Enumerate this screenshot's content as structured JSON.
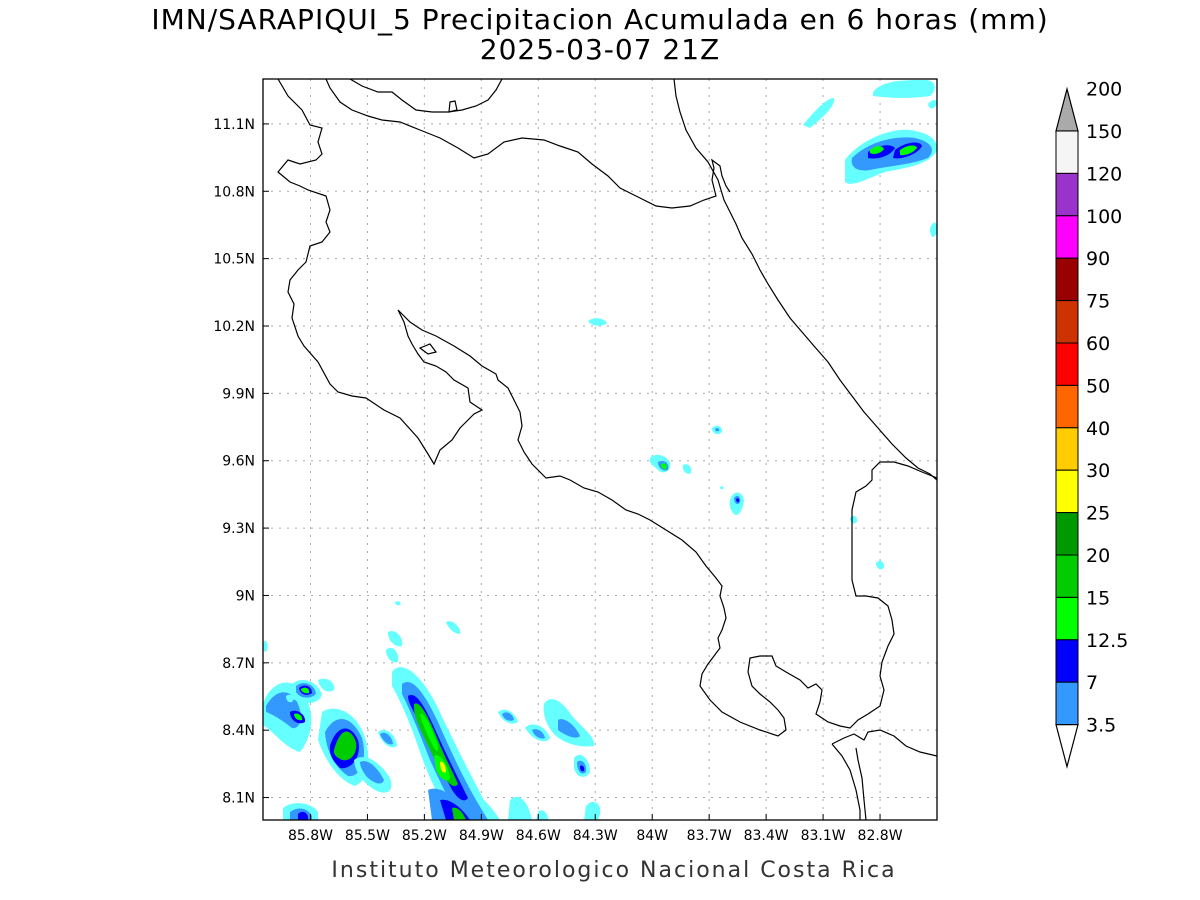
{
  "title": {
    "line1": "IMN/SARAPIQUI_5 Precipitacion Acumulada en 6 horas (mm)",
    "line2": "2025-03-07 21Z"
  },
  "footer": "Instituto Meteorologico Nacional Costa Rica",
  "map": {
    "lon_range": [
      -86.05,
      -82.5
    ],
    "lat_range": [
      8.0,
      11.3
    ],
    "grid": true,
    "lat_ticks": [
      {
        "value": 11.1,
        "label": "11.1N"
      },
      {
        "value": 10.8,
        "label": "10.8N"
      },
      {
        "value": 10.5,
        "label": "10.5N"
      },
      {
        "value": 10.2,
        "label": "10.2N"
      },
      {
        "value": 9.9,
        "label": "9.9N"
      },
      {
        "value": 9.6,
        "label": "9.6N"
      },
      {
        "value": 9.3,
        "label": "9.3N"
      },
      {
        "value": 9.0,
        "label": "9N"
      },
      {
        "value": 8.7,
        "label": "8.7N"
      },
      {
        "value": 8.4,
        "label": "8.4N"
      },
      {
        "value": 8.1,
        "label": "8.1N"
      }
    ],
    "lon_ticks": [
      {
        "value": -85.8,
        "label": "85.8W"
      },
      {
        "value": -85.5,
        "label": "85.5W"
      },
      {
        "value": -85.2,
        "label": "85.2W"
      },
      {
        "value": -84.9,
        "label": "84.9W"
      },
      {
        "value": -84.6,
        "label": "84.6W"
      },
      {
        "value": -84.3,
        "label": "84.3W"
      },
      {
        "value": -84.0,
        "label": "84W"
      },
      {
        "value": -83.7,
        "label": "83.7W"
      },
      {
        "value": -83.4,
        "label": "83.4W"
      },
      {
        "value": -83.1,
        "label": "83.1W"
      },
      {
        "value": -82.8,
        "label": "82.8W"
      }
    ]
  },
  "colorbar": {
    "levels": [
      "3.5",
      "7",
      "12.5",
      "15",
      "20",
      "25",
      "30",
      "40",
      "50",
      "60",
      "75",
      "90",
      "100",
      "120",
      "150",
      "200"
    ],
    "colors": [
      "#66ffff",
      "#3399ff",
      "#0000ff",
      "#00ff00",
      "#00cc00",
      "#009900",
      "#ffff00",
      "#ffcc00",
      "#ff6600",
      "#ff0000",
      "#cc3300",
      "#990000",
      "#ff00ff",
      "#9933cc",
      "#f5f5f5",
      "#aaaaaa"
    ]
  }
}
